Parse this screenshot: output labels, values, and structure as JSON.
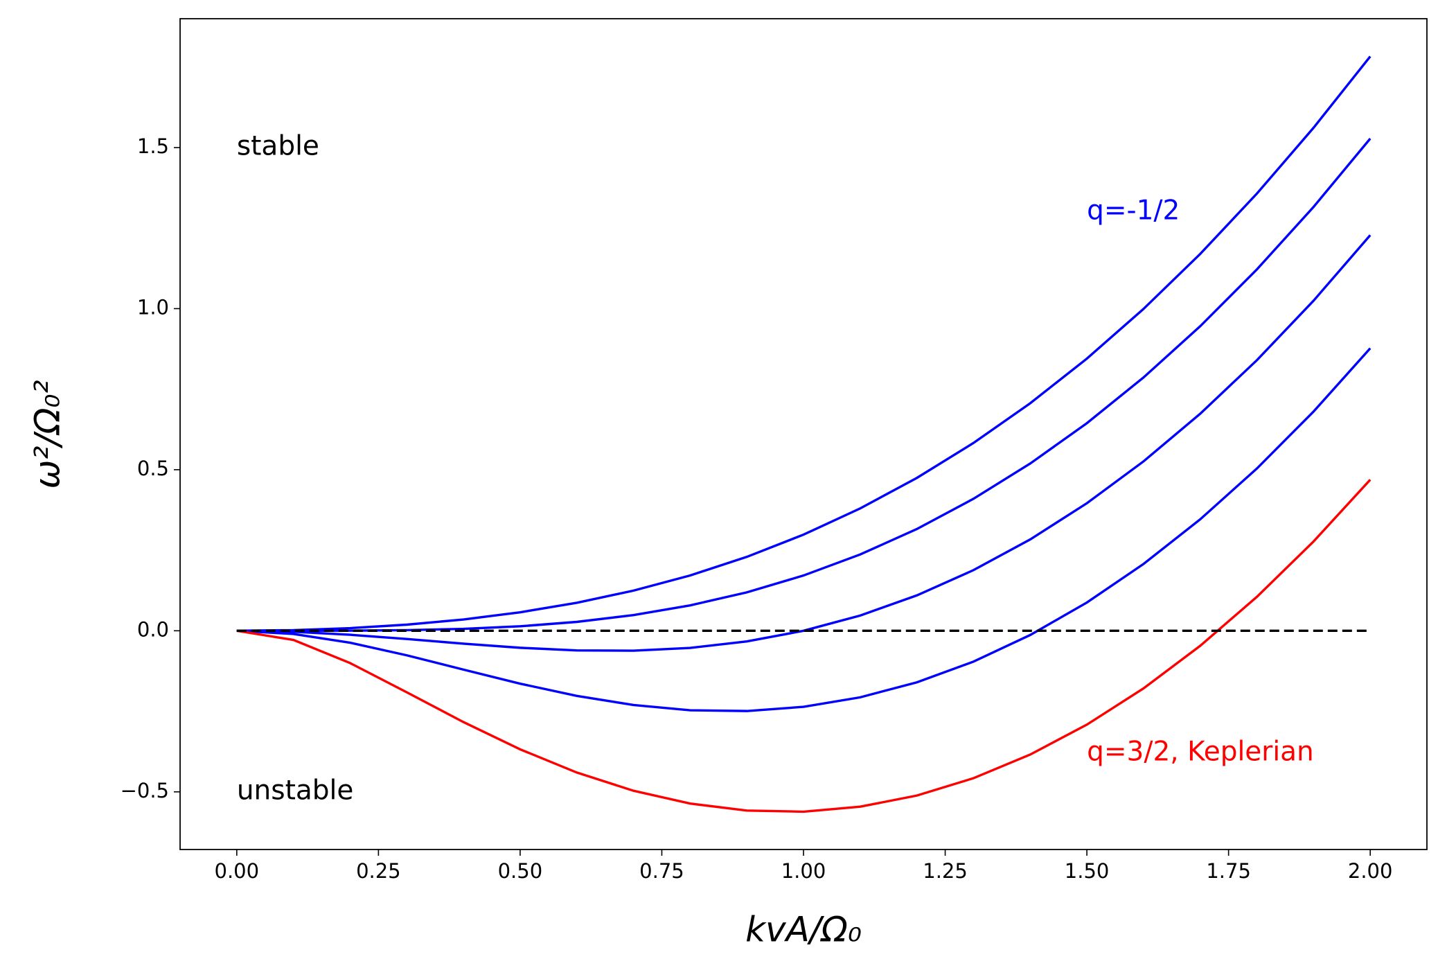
{
  "chart_data": {
    "type": "line",
    "xlabel": "kvA/Ω₀",
    "ylabel": "ω²/Ω₀²",
    "x": [
      0,
      0.1,
      0.2,
      0.3,
      0.4,
      0.5,
      0.6,
      0.7,
      0.8,
      0.9,
      1.0,
      1.1,
      1.2,
      1.3,
      1.4,
      1.5,
      1.6,
      1.7,
      1.8,
      1.9,
      2.0
    ],
    "series": [
      {
        "color": "#0000ff",
        "values": [
          0,
          0.002,
          0.0082,
          0.019,
          0.0351,
          0.0574,
          0.0869,
          0.1247,
          0.1718,
          0.2294,
          0.2984,
          0.3798,
          0.4745,
          0.5831,
          0.7063,
          0.8449,
          0.9992,
          1.1698,
          1.3571,
          1.5614,
          1.783
        ]
      },
      {
        "color": "#0000ff",
        "values": [
          0,
          0.0,
          0.0004,
          0.0019,
          0.0059,
          0.0139,
          0.0276,
          0.0487,
          0.0788,
          0.1193,
          0.1716,
          0.2368,
          0.3159,
          0.4098,
          0.5191,
          0.6444,
          0.7864,
          0.9454,
          1.1218,
          1.3158,
          1.5279
        ]
      },
      {
        "color": "#0000ff",
        "values": [
          0,
          -0.0033,
          -0.0124,
          -0.0256,
          -0.04,
          -0.0528,
          -0.0609,
          -0.0618,
          -0.0532,
          -0.0331,
          0,
          0.0473,
          0.1098,
          0.1883,
          0.2835,
          0.3959,
          0.5259,
          0.6738,
          0.84,
          1.0247,
          1.228
        ]
      },
      {
        "color": "#0000ff",
        "values": [
          0,
          -0.0098,
          -0.037,
          -0.0762,
          -0.1206,
          -0.1642,
          -0.2021,
          -0.2305,
          -0.2468,
          -0.2491,
          -0.2361,
          -0.2066,
          -0.16,
          -0.0957,
          -0.0132,
          0.0877,
          0.2074,
          0.346,
          0.5037,
          0.6806,
          0.8769
        ]
      },
      {
        "color": "#ff0000",
        "values": [
          0,
          -0.0285,
          -0.1003,
          -0.191,
          -0.2834,
          -0.368,
          -0.44,
          -0.4966,
          -0.5363,
          -0.5582,
          -0.5616,
          -0.5461,
          -0.5115,
          -0.4576,
          -0.3843,
          -0.2914,
          -0.1788,
          -0.0466,
          0.1054,
          0.2773,
          0.4689
        ]
      },
      {
        "color": "#000000",
        "dashed": true,
        "values": [
          0,
          0,
          0,
          0,
          0,
          0,
          0,
          0,
          0,
          0,
          0,
          0,
          0,
          0,
          0,
          0,
          0,
          0,
          0,
          0,
          0
        ]
      }
    ],
    "annotations": [
      {
        "text": "stable",
        "color": "#000000"
      },
      {
        "text": "unstable",
        "color": "#000000"
      },
      {
        "text": "q=-1/2",
        "color": "#0000ff"
      },
      {
        "text": "q=3/2, Keplerian",
        "color": "#ff0000"
      }
    ],
    "xlim": [
      -0.1,
      2.1
    ],
    "ylim": [
      -0.679,
      1.9
    ],
    "xticks": [
      {
        "value": 0,
        "label": "0.00"
      },
      {
        "value": 0.25,
        "label": "0.25"
      },
      {
        "value": 0.5,
        "label": "0.50"
      },
      {
        "value": 0.75,
        "label": "0.75"
      },
      {
        "value": 1.0,
        "label": "1.00"
      },
      {
        "value": 1.25,
        "label": "1.25"
      },
      {
        "value": 1.5,
        "label": "1.50"
      },
      {
        "value": 1.75,
        "label": "1.75"
      },
      {
        "value": 2.0,
        "label": "2.00"
      }
    ],
    "yticks": [
      {
        "value": -0.5,
        "label": "−0.5"
      },
      {
        "value": 0,
        "label": "0.0"
      },
      {
        "value": 0.5,
        "label": "0.5"
      },
      {
        "value": 1.0,
        "label": "1.0"
      },
      {
        "value": 1.5,
        "label": "1.5"
      }
    ],
    "grid": false
  }
}
